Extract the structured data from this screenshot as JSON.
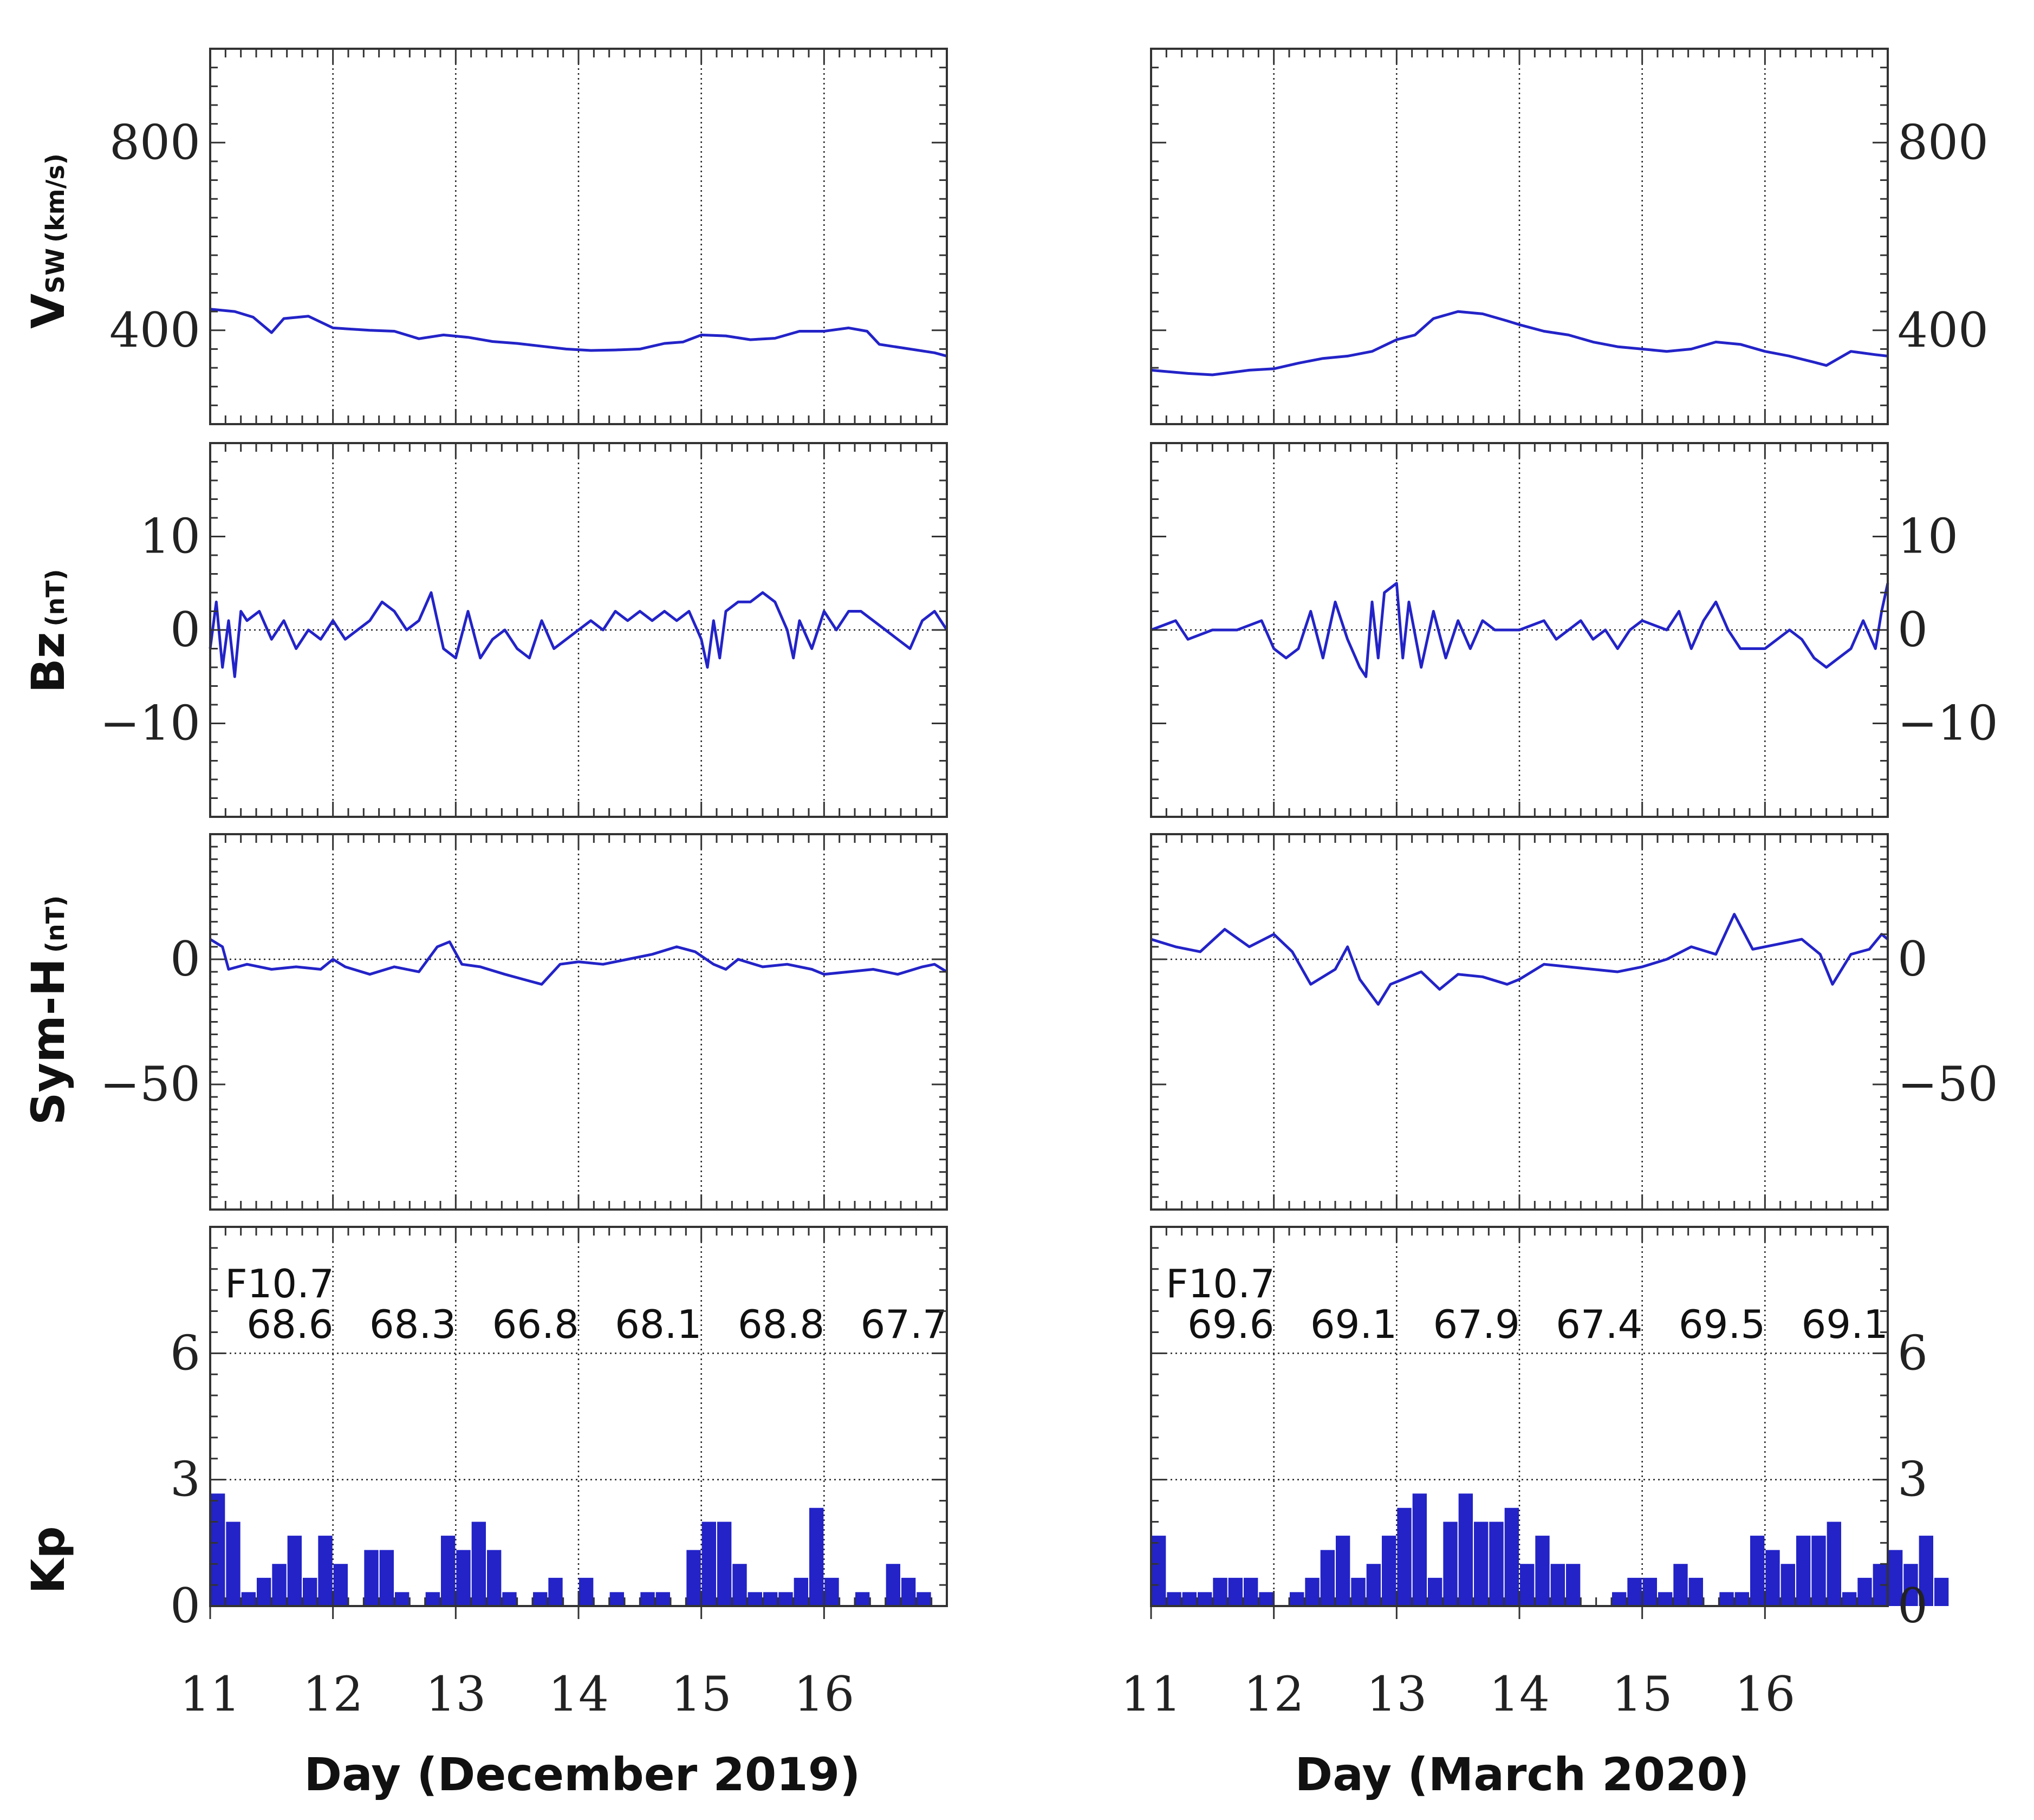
{
  "figure": {
    "x_tick_labels": [
      "11",
      "12",
      "13",
      "14",
      "15",
      "16"
    ],
    "x_range": [
      11,
      17
    ],
    "f107_label": "F10.7",
    "panels": [
      {
        "key": "vsw",
        "label_main": "V",
        "label_sub": "SW",
        "unit": "(km/s)",
        "ylim": [
          200,
          1000
        ],
        "major": [
          800,
          400
        ],
        "labels": [
          "800",
          "400"
        ],
        "minor_step": 40,
        "zero_line": false
      },
      {
        "key": "bz",
        "label_main": "Bz",
        "label_sub": "",
        "unit": "(nT)",
        "ylim": [
          -20,
          20
        ],
        "major": [
          10,
          0,
          -10
        ],
        "labels": [
          "10",
          "0",
          "−10"
        ],
        "minor_step": 2,
        "zero_line": true
      },
      {
        "key": "symh",
        "label_main": "Sym-H",
        "label_sub": "",
        "unit": "(nT)",
        "ylim": [
          -100,
          50
        ],
        "major": [
          0,
          -50
        ],
        "labels": [
          "0",
          "−50"
        ],
        "minor_step": 5,
        "zero_line": true
      },
      {
        "key": "kp",
        "label_main": "Kp",
        "label_sub": "",
        "unit": "",
        "ylim": [
          0,
          9
        ],
        "major": [
          6,
          3,
          0
        ],
        "labels": [
          "6",
          "3",
          "0"
        ],
        "minor_step": 0.5,
        "zero_line": false
      }
    ]
  },
  "chart_data": [
    {
      "type": "multi-panel time series",
      "xlabel": "Day (December 2019)",
      "x_ticks": [
        11,
        12,
        13,
        14,
        15,
        16
      ],
      "series": {
        "vsw": [
          [
            11.0,
            445
          ],
          [
            11.2,
            440
          ],
          [
            11.35,
            428
          ],
          [
            11.5,
            395
          ],
          [
            11.6,
            425
          ],
          [
            11.8,
            430
          ],
          [
            12.0,
            405
          ],
          [
            12.3,
            400
          ],
          [
            12.5,
            398
          ],
          [
            12.7,
            382
          ],
          [
            12.9,
            390
          ],
          [
            13.1,
            385
          ],
          [
            13.3,
            376
          ],
          [
            13.5,
            372
          ],
          [
            13.7,
            366
          ],
          [
            13.9,
            360
          ],
          [
            14.1,
            357
          ],
          [
            14.3,
            358
          ],
          [
            14.5,
            360
          ],
          [
            14.7,
            372
          ],
          [
            14.85,
            375
          ],
          [
            15.0,
            390
          ],
          [
            15.2,
            388
          ],
          [
            15.4,
            380
          ],
          [
            15.6,
            383
          ],
          [
            15.8,
            398
          ],
          [
            16.0,
            398
          ],
          [
            16.2,
            405
          ],
          [
            16.35,
            398
          ],
          [
            16.45,
            370
          ],
          [
            16.7,
            360
          ],
          [
            16.9,
            352
          ],
          [
            17.0,
            345
          ]
        ],
        "bz": [
          [
            11.0,
            -2
          ],
          [
            11.05,
            3
          ],
          [
            11.1,
            -4
          ],
          [
            11.15,
            1
          ],
          [
            11.2,
            -5
          ],
          [
            11.25,
            2
          ],
          [
            11.3,
            1
          ],
          [
            11.4,
            2
          ],
          [
            11.5,
            -1
          ],
          [
            11.6,
            1
          ],
          [
            11.7,
            -2
          ],
          [
            11.8,
            0
          ],
          [
            11.9,
            -1
          ],
          [
            12.0,
            1
          ],
          [
            12.1,
            -1
          ],
          [
            12.2,
            0
          ],
          [
            12.3,
            1
          ],
          [
            12.4,
            3
          ],
          [
            12.5,
            2
          ],
          [
            12.6,
            0
          ],
          [
            12.7,
            1
          ],
          [
            12.8,
            4
          ],
          [
            12.9,
            -2
          ],
          [
            13.0,
            -3
          ],
          [
            13.1,
            2
          ],
          [
            13.2,
            -3
          ],
          [
            13.3,
            -1
          ],
          [
            13.4,
            0
          ],
          [
            13.5,
            -2
          ],
          [
            13.6,
            -3
          ],
          [
            13.7,
            1
          ],
          [
            13.8,
            -2
          ],
          [
            13.9,
            -1
          ],
          [
            14.0,
            0
          ],
          [
            14.1,
            1
          ],
          [
            14.2,
            0
          ],
          [
            14.3,
            2
          ],
          [
            14.4,
            1
          ],
          [
            14.5,
            2
          ],
          [
            14.6,
            1
          ],
          [
            14.7,
            2
          ],
          [
            14.8,
            1
          ],
          [
            14.9,
            2
          ],
          [
            15.0,
            -1
          ],
          [
            15.05,
            -4
          ],
          [
            15.1,
            1
          ],
          [
            15.15,
            -3
          ],
          [
            15.2,
            2
          ],
          [
            15.3,
            3
          ],
          [
            15.4,
            3
          ],
          [
            15.5,
            4
          ],
          [
            15.6,
            3
          ],
          [
            15.7,
            0
          ],
          [
            15.75,
            -3
          ],
          [
            15.8,
            1
          ],
          [
            15.9,
            -2
          ],
          [
            16.0,
            2
          ],
          [
            16.1,
            0
          ],
          [
            16.2,
            2
          ],
          [
            16.3,
            2
          ],
          [
            16.4,
            1
          ],
          [
            16.5,
            0
          ],
          [
            16.6,
            -1
          ],
          [
            16.7,
            -2
          ],
          [
            16.8,
            1
          ],
          [
            16.9,
            2
          ],
          [
            17.0,
            0
          ]
        ],
        "symh": [
          [
            11.0,
            8
          ],
          [
            11.1,
            5
          ],
          [
            11.15,
            -4
          ],
          [
            11.3,
            -2
          ],
          [
            11.5,
            -4
          ],
          [
            11.7,
            -3
          ],
          [
            11.9,
            -4
          ],
          [
            12.0,
            0
          ],
          [
            12.1,
            -3
          ],
          [
            12.3,
            -6
          ],
          [
            12.5,
            -3
          ],
          [
            12.7,
            -5
          ],
          [
            12.85,
            5
          ],
          [
            12.95,
            7
          ],
          [
            13.05,
            -2
          ],
          [
            13.2,
            -3
          ],
          [
            13.4,
            -6
          ],
          [
            13.55,
            -8
          ],
          [
            13.7,
            -10
          ],
          [
            13.85,
            -2
          ],
          [
            14.0,
            -1
          ],
          [
            14.2,
            -2
          ],
          [
            14.4,
            0
          ],
          [
            14.6,
            2
          ],
          [
            14.8,
            5
          ],
          [
            14.95,
            3
          ],
          [
            15.1,
            -2
          ],
          [
            15.2,
            -4
          ],
          [
            15.3,
            0
          ],
          [
            15.5,
            -3
          ],
          [
            15.7,
            -2
          ],
          [
            15.9,
            -4
          ],
          [
            16.0,
            -6
          ],
          [
            16.2,
            -5
          ],
          [
            16.4,
            -4
          ],
          [
            16.6,
            -6
          ],
          [
            16.8,
            -3
          ],
          [
            16.9,
            -2
          ],
          [
            17.0,
            -5
          ]
        ],
        "kp_bins": [
          2.67,
          2.0,
          0.33,
          0.67,
          1.0,
          1.67,
          0.67,
          1.67,
          1.0,
          null,
          1.33,
          1.33,
          0.33,
          null,
          0.33,
          1.67,
          1.33,
          2.0,
          1.33,
          0.33,
          null,
          0.33,
          0.67,
          null,
          0.67,
          null,
          0.33,
          null,
          0.33,
          0.33,
          null,
          1.33,
          2.0,
          2.0,
          1.0,
          0.33,
          0.33,
          0.33,
          0.67,
          2.33,
          0.67,
          null,
          0.33,
          null,
          1.0,
          0.67,
          0.33,
          null
        ],
        "f107": [
          "68.6",
          "68.3",
          "66.8",
          "68.1",
          "68.8",
          "67.7"
        ]
      }
    },
    {
      "type": "multi-panel time series",
      "xlabel": "Day (March 2020)",
      "x_ticks": [
        11,
        12,
        13,
        14,
        15,
        16
      ],
      "series": {
        "vsw": [
          [
            11.0,
            315
          ],
          [
            11.3,
            308
          ],
          [
            11.5,
            305
          ],
          [
            11.8,
            315
          ],
          [
            12.0,
            318
          ],
          [
            12.2,
            330
          ],
          [
            12.4,
            340
          ],
          [
            12.6,
            345
          ],
          [
            12.8,
            355
          ],
          [
            13.0,
            380
          ],
          [
            13.15,
            390
          ],
          [
            13.3,
            425
          ],
          [
            13.5,
            440
          ],
          [
            13.7,
            435
          ],
          [
            13.9,
            420
          ],
          [
            14.0,
            412
          ],
          [
            14.2,
            398
          ],
          [
            14.4,
            390
          ],
          [
            14.6,
            375
          ],
          [
            14.8,
            365
          ],
          [
            15.0,
            360
          ],
          [
            15.2,
            355
          ],
          [
            15.4,
            360
          ],
          [
            15.6,
            375
          ],
          [
            15.8,
            370
          ],
          [
            16.0,
            355
          ],
          [
            16.2,
            345
          ],
          [
            16.4,
            332
          ],
          [
            16.5,
            325
          ],
          [
            16.7,
            355
          ],
          [
            16.9,
            348
          ],
          [
            17.0,
            345
          ]
        ],
        "bz": [
          [
            11.0,
            0
          ],
          [
            11.2,
            1
          ],
          [
            11.3,
            -1
          ],
          [
            11.5,
            0
          ],
          [
            11.7,
            0
          ],
          [
            11.9,
            1
          ],
          [
            12.0,
            -2
          ],
          [
            12.1,
            -3
          ],
          [
            12.2,
            -2
          ],
          [
            12.3,
            2
          ],
          [
            12.4,
            -3
          ],
          [
            12.5,
            3
          ],
          [
            12.6,
            -1
          ],
          [
            12.7,
            -4
          ],
          [
            12.75,
            -5
          ],
          [
            12.8,
            3
          ],
          [
            12.85,
            -3
          ],
          [
            12.9,
            4
          ],
          [
            13.0,
            5
          ],
          [
            13.05,
            -3
          ],
          [
            13.1,
            3
          ],
          [
            13.2,
            -4
          ],
          [
            13.3,
            2
          ],
          [
            13.4,
            -3
          ],
          [
            13.5,
            1
          ],
          [
            13.6,
            -2
          ],
          [
            13.7,
            1
          ],
          [
            13.8,
            0
          ],
          [
            13.9,
            0
          ],
          [
            14.0,
            0
          ],
          [
            14.2,
            1
          ],
          [
            14.3,
            -1
          ],
          [
            14.4,
            0
          ],
          [
            14.5,
            1
          ],
          [
            14.6,
            -1
          ],
          [
            14.7,
            0
          ],
          [
            14.8,
            -2
          ],
          [
            14.9,
            0
          ],
          [
            15.0,
            1
          ],
          [
            15.2,
            0
          ],
          [
            15.3,
            2
          ],
          [
            15.4,
            -2
          ],
          [
            15.5,
            1
          ],
          [
            15.6,
            3
          ],
          [
            15.7,
            0
          ],
          [
            15.8,
            -2
          ],
          [
            16.0,
            -2
          ],
          [
            16.2,
            0
          ],
          [
            16.3,
            -1
          ],
          [
            16.4,
            -3
          ],
          [
            16.5,
            -4
          ],
          [
            16.6,
            -3
          ],
          [
            16.7,
            -2
          ],
          [
            16.8,
            1
          ],
          [
            16.9,
            -2
          ],
          [
            16.95,
            2
          ],
          [
            17.0,
            5
          ]
        ],
        "symh": [
          [
            11.0,
            8
          ],
          [
            11.2,
            5
          ],
          [
            11.4,
            3
          ],
          [
            11.6,
            12
          ],
          [
            11.8,
            5
          ],
          [
            12.0,
            10
          ],
          [
            12.15,
            3
          ],
          [
            12.3,
            -10
          ],
          [
            12.5,
            -4
          ],
          [
            12.6,
            5
          ],
          [
            12.7,
            -8
          ],
          [
            12.85,
            -18
          ],
          [
            12.95,
            -10
          ],
          [
            13.05,
            -8
          ],
          [
            13.2,
            -5
          ],
          [
            13.35,
            -12
          ],
          [
            13.5,
            -6
          ],
          [
            13.7,
            -7
          ],
          [
            13.9,
            -10
          ],
          [
            14.0,
            -8
          ],
          [
            14.2,
            -2
          ],
          [
            14.4,
            -3
          ],
          [
            14.6,
            -4
          ],
          [
            14.8,
            -5
          ],
          [
            15.0,
            -3
          ],
          [
            15.2,
            0
          ],
          [
            15.4,
            5
          ],
          [
            15.6,
            2
          ],
          [
            15.75,
            18
          ],
          [
            15.9,
            4
          ],
          [
            16.1,
            6
          ],
          [
            16.3,
            8
          ],
          [
            16.45,
            2
          ],
          [
            16.55,
            -10
          ],
          [
            16.7,
            2
          ],
          [
            16.85,
            4
          ],
          [
            16.95,
            10
          ],
          [
            17.0,
            8
          ]
        ],
        "kp_bins": [
          1.67,
          0.33,
          0.33,
          0.33,
          0.67,
          0.67,
          0.67,
          0.33,
          null,
          0.33,
          0.67,
          1.33,
          1.67,
          0.67,
          1.0,
          1.67,
          2.33,
          2.67,
          0.67,
          2.0,
          2.67,
          2.0,
          2.0,
          2.33,
          1.0,
          1.67,
          1.0,
          1.0,
          null,
          null,
          0.33,
          0.67,
          0.67,
          0.33,
          1.0,
          0.67,
          null,
          0.33,
          0.33,
          1.67,
          1.33,
          1.0,
          1.67,
          1.67,
          2.0,
          0.33,
          0.67,
          1.0,
          1.33,
          1.0,
          1.67,
          0.67
        ],
        "f107": [
          "69.6",
          "69.1",
          "67.9",
          "67.4",
          "69.5",
          "69.1"
        ]
      }
    }
  ]
}
